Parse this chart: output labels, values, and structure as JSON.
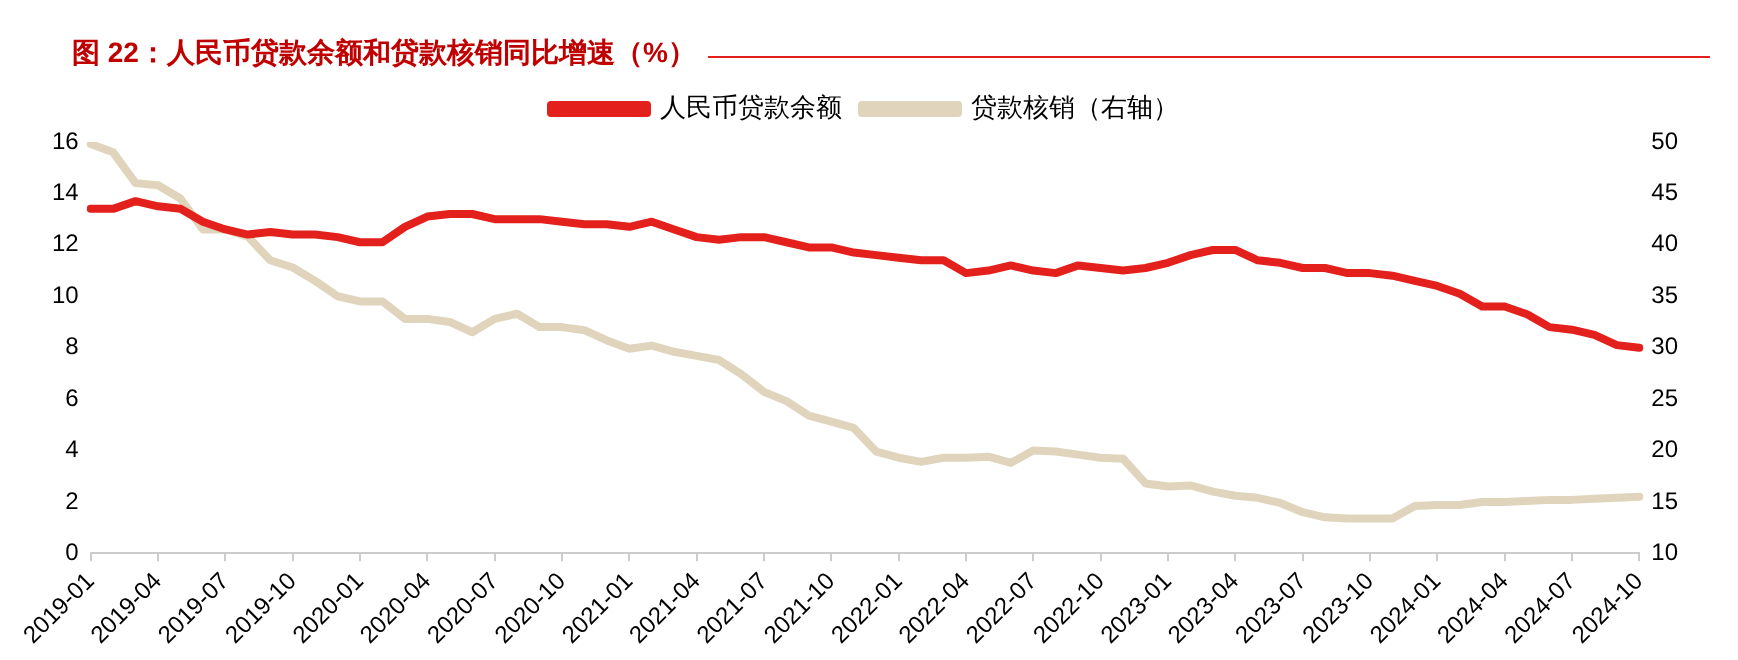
{
  "chart_data": {
    "type": "line",
    "title": "图 22：人民币贷款余额和贷款核销同比增速（%）",
    "categories": [
      "2019-01",
      null,
      null,
      "2019-04",
      null,
      null,
      "2019-07",
      null,
      null,
      "2019-10",
      null,
      null,
      "2020-01",
      null,
      null,
      "2020-04",
      null,
      null,
      "2020-07",
      null,
      null,
      "2020-10",
      null,
      null,
      "2021-01",
      null,
      null,
      "2021-04",
      null,
      null,
      "2021-07",
      null,
      null,
      "2021-10",
      null,
      null,
      "2022-01",
      null,
      null,
      "2022-04",
      null,
      null,
      "2022-07",
      null,
      null,
      "2022-10",
      null,
      null,
      "2023-01",
      null,
      null,
      "2023-04",
      null,
      null,
      "2023-07",
      null,
      null,
      "2023-10",
      null,
      null,
      "2024-01",
      null,
      null,
      "2024-04",
      null,
      null,
      "2024-07",
      null,
      null,
      "2024-10"
    ],
    "series": [
      {
        "name": "人民币贷款余额",
        "color": "#e3201b",
        "values": [
          13.4,
          13.4,
          13.7,
          13.5,
          13.4,
          12.9,
          12.6,
          12.4,
          12.5,
          12.4,
          12.4,
          12.3,
          12.1,
          12.1,
          12.7,
          13.1,
          13.2,
          13.2,
          13.0,
          13.0,
          13.0,
          12.9,
          12.8,
          12.8,
          12.7,
          12.9,
          12.6,
          12.3,
          12.2,
          12.3,
          12.3,
          12.1,
          11.9,
          11.9,
          11.7,
          11.6,
          11.5,
          11.4,
          11.4,
          10.9,
          11.0,
          11.2,
          11.0,
          10.9,
          11.2,
          11.1,
          11.0,
          11.1,
          11.3,
          11.6,
          11.8,
          11.8,
          11.4,
          11.3,
          11.1,
          11.1,
          10.9,
          10.9,
          10.8,
          10.6,
          10.4,
          10.1,
          9.6,
          9.6,
          9.3,
          8.8,
          8.7,
          8.5,
          8.1,
          8.0
        ]
      },
      {
        "name": "贷款核销（右轴）",
        "color": "#e0d5bc",
        "axis": "y2",
        "values": [
          49.8,
          49.0,
          46.0,
          45.8,
          44.5,
          41.5,
          41.5,
          40.8,
          38.5,
          37.8,
          36.5,
          35.0,
          34.5,
          34.5,
          32.8,
          32.8,
          32.5,
          31.5,
          32.8,
          33.3,
          32.0,
          32.0,
          31.7,
          30.7,
          29.9,
          30.2,
          29.6,
          29.2,
          28.8,
          27.4,
          25.7,
          24.8,
          23.4,
          22.8,
          22.2,
          19.9,
          19.3,
          18.9,
          19.3,
          19.3,
          19.4,
          18.8,
          20.0,
          19.9,
          19.6,
          19.3,
          19.2,
          16.8,
          16.5,
          16.6,
          16.0,
          15.6,
          15.4,
          14.9,
          14.0,
          13.5,
          13.4,
          13.4,
          13.4,
          14.6,
          14.7,
          14.7,
          15.0,
          15.0,
          15.1,
          15.2,
          15.2,
          15.3,
          15.4,
          15.5
        ]
      }
    ],
    "ylim": [
      0,
      16
    ],
    "yticks": [
      0,
      2,
      4,
      6,
      8,
      10,
      12,
      14,
      16
    ],
    "y2lim": [
      10,
      50
    ],
    "y2ticks": [
      10,
      15,
      20,
      25,
      30,
      35,
      40,
      45,
      50
    ],
    "legend": "top",
    "marker": "none"
  }
}
